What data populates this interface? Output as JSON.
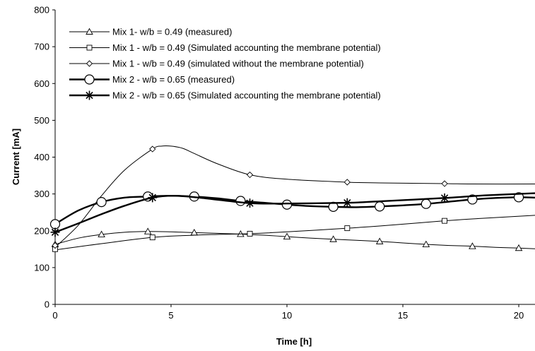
{
  "chart_data": {
    "type": "line",
    "xlabel": "Time [h]",
    "ylabel": "Current [mA]",
    "xlim": [
      0,
      20.7
    ],
    "ylim": [
      0,
      800
    ],
    "xticks": [
      0,
      5,
      10,
      15,
      20
    ],
    "yticks": [
      0,
      100,
      200,
      300,
      400,
      500,
      600,
      700,
      800
    ],
    "grid": false,
    "legend_position": "top-left",
    "series": [
      {
        "name": "Mix 1- w/b = 0.49  (measured)",
        "marker": "triangle",
        "line_weight": "thin",
        "markers": [
          [
            0,
            163
          ],
          [
            2,
            190
          ],
          [
            4,
            198
          ],
          [
            6,
            195
          ],
          [
            8,
            191
          ],
          [
            10,
            184
          ],
          [
            12,
            177
          ],
          [
            14,
            171
          ],
          [
            16,
            163
          ],
          [
            18,
            158
          ],
          [
            20,
            153
          ]
        ],
        "curve": [
          [
            0,
            163
          ],
          [
            1,
            180
          ],
          [
            2,
            190
          ],
          [
            3,
            196
          ],
          [
            4,
            198
          ],
          [
            5,
            197
          ],
          [
            6,
            195
          ],
          [
            7,
            193
          ],
          [
            8,
            191
          ],
          [
            9,
            188
          ],
          [
            10,
            184
          ],
          [
            11,
            180
          ],
          [
            12,
            177
          ],
          [
            13,
            174
          ],
          [
            14,
            171
          ],
          [
            15,
            167
          ],
          [
            16,
            163
          ],
          [
            17,
            160
          ],
          [
            18,
            158
          ],
          [
            19,
            155
          ],
          [
            20,
            153
          ],
          [
            20.7,
            151
          ]
        ]
      },
      {
        "name": "Mix 1 - w/b = 0.49  (Simulated accounting the membrane potential)",
        "marker": "square",
        "line_weight": "thin",
        "markers": [
          [
            0,
            150
          ],
          [
            4.2,
            182
          ],
          [
            8.4,
            192
          ],
          [
            12.6,
            207
          ],
          [
            16.8,
            227
          ]
        ],
        "curve": [
          [
            0,
            148
          ],
          [
            2,
            165
          ],
          [
            4.2,
            182
          ],
          [
            6,
            188
          ],
          [
            7,
            190
          ],
          [
            8.4,
            192
          ],
          [
            10,
            197
          ],
          [
            12.6,
            207
          ],
          [
            14,
            213
          ],
          [
            16.8,
            227
          ],
          [
            18.5,
            234
          ],
          [
            20.7,
            242
          ]
        ]
      },
      {
        "name": "Mix 1 - w/b = 0.49  (simulated without the membrane potential)",
        "marker": "diamond",
        "line_weight": "thin",
        "markers": [
          [
            0,
            160
          ],
          [
            4.2,
            422
          ],
          [
            8.4,
            352
          ],
          [
            12.6,
            332
          ],
          [
            16.8,
            328
          ]
        ],
        "curve": [
          [
            0,
            155
          ],
          [
            1,
            215
          ],
          [
            2,
            295
          ],
          [
            3,
            365
          ],
          [
            4.2,
            422
          ],
          [
            4.6,
            430
          ],
          [
            5,
            430
          ],
          [
            5.5,
            424
          ],
          [
            6,
            410
          ],
          [
            7,
            382
          ],
          [
            8.4,
            352
          ],
          [
            10,
            340
          ],
          [
            12.6,
            332
          ],
          [
            14,
            330
          ],
          [
            16.8,
            328
          ],
          [
            18,
            327
          ],
          [
            20.7,
            327
          ]
        ]
      },
      {
        "name": "Mix 2 - w/b = 0.65  (measured)",
        "marker": "circle",
        "line_weight": "thick",
        "markers": [
          [
            0,
            218
          ],
          [
            2,
            278
          ],
          [
            4,
            293
          ],
          [
            6,
            293
          ],
          [
            8,
            281
          ],
          [
            10,
            271
          ],
          [
            12,
            265
          ],
          [
            14,
            266
          ],
          [
            16,
            273
          ],
          [
            18,
            285
          ],
          [
            20,
            291
          ]
        ],
        "curve": [
          [
            0,
            218
          ],
          [
            1,
            255
          ],
          [
            2,
            278
          ],
          [
            3,
            290
          ],
          [
            4,
            293
          ],
          [
            5,
            295
          ],
          [
            6,
            293
          ],
          [
            7,
            288
          ],
          [
            8,
            281
          ],
          [
            9,
            276
          ],
          [
            10,
            271
          ],
          [
            11,
            267
          ],
          [
            12,
            265
          ],
          [
            13,
            264
          ],
          [
            14,
            266
          ],
          [
            15,
            269
          ],
          [
            16,
            273
          ],
          [
            17,
            279
          ],
          [
            18,
            285
          ],
          [
            19,
            289
          ],
          [
            20,
            291
          ],
          [
            20.7,
            290
          ]
        ]
      },
      {
        "name": "Mix 2 - w/b = 0.65  (Simulated accounting the membrane potential)",
        "marker": "star",
        "line_weight": "thick",
        "markers": [
          [
            0,
            196
          ],
          [
            4.2,
            290
          ],
          [
            8.4,
            275
          ],
          [
            12.6,
            276
          ],
          [
            16.8,
            289
          ]
        ],
        "curve": [
          [
            0,
            196
          ],
          [
            1,
            220
          ],
          [
            2,
            245
          ],
          [
            3,
            268
          ],
          [
            4.2,
            290
          ],
          [
            5.2,
            295
          ],
          [
            6.5,
            288
          ],
          [
            8.4,
            275
          ],
          [
            10,
            274
          ],
          [
            12.6,
            276
          ],
          [
            14,
            280
          ],
          [
            16.8,
            289
          ],
          [
            18.5,
            296
          ],
          [
            20.7,
            302
          ]
        ]
      }
    ]
  }
}
